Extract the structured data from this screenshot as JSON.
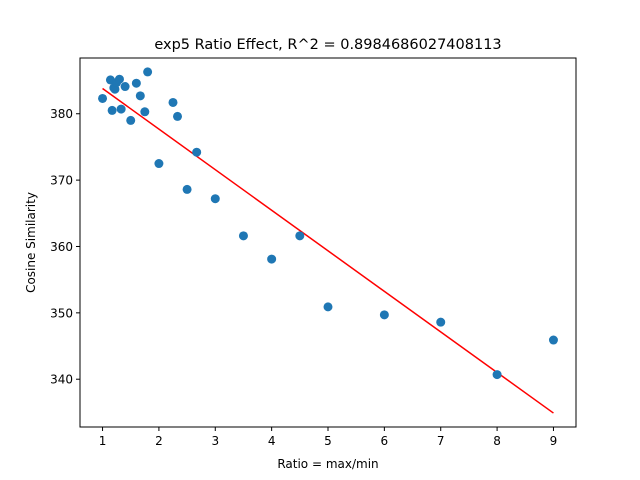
{
  "chart_data": {
    "type": "scatter",
    "title": "exp5 Ratio Effect, R^2 = 0.8984686027408113",
    "xlabel": "Ratio = max/min",
    "ylabel": "Cosine Similarity",
    "xlim": [
      0.6,
      9.4
    ],
    "ylim": [
      332.8,
      388.4
    ],
    "xticks": [
      1,
      2,
      3,
      4,
      5,
      6,
      7,
      8,
      9
    ],
    "yticks": [
      340,
      350,
      360,
      370,
      380
    ],
    "grid": false,
    "points": {
      "x": [
        1.0,
        1.14,
        1.17,
        1.2,
        1.22,
        1.25,
        1.3,
        1.33,
        1.4,
        1.5,
        1.6,
        1.67,
        1.75,
        1.8,
        2.0,
        2.25,
        2.33,
        2.5,
        2.67,
        3.0,
        3.5,
        4.0,
        4.5,
        5.0,
        6.0,
        7.0,
        8.0,
        9.0
      ],
      "y": [
        382.3,
        385.1,
        380.5,
        383.9,
        383.7,
        384.7,
        385.2,
        380.7,
        384.1,
        379.0,
        384.6,
        382.7,
        380.3,
        386.3,
        372.5,
        381.7,
        379.6,
        368.6,
        374.2,
        367.2,
        361.6,
        358.1,
        361.6,
        350.9,
        349.7,
        348.6,
        340.7,
        345.9
      ],
      "color": "#1f77b4"
    },
    "fit_line": {
      "x": [
        1.0,
        9.0
      ],
      "y": [
        383.8,
        334.9
      ],
      "color": "#ff0000"
    }
  }
}
